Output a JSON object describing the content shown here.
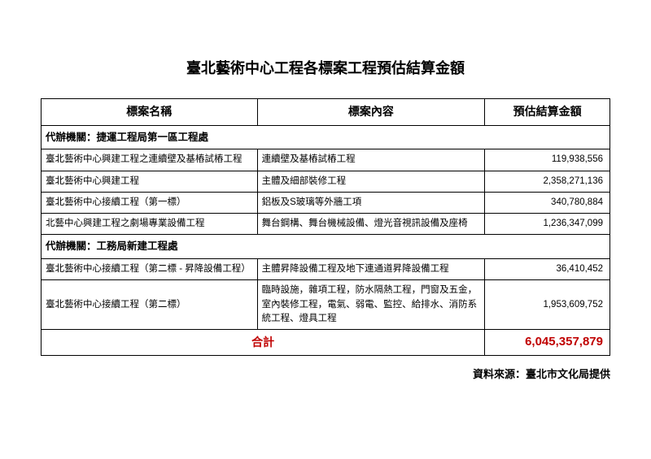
{
  "title": "臺北藝術中心工程各標案工程預估結算金額",
  "headers": {
    "name": "標案名稱",
    "content": "標案內容",
    "amount": "預估結算金額"
  },
  "agency1": "代辦機關：捷運工程局第一區工程處",
  "rows1": [
    {
      "name": "臺北藝術中心興建工程之連續壁及基樁試樁工程",
      "content": "連續壁及基樁試樁工程",
      "amount": "119,938,556"
    },
    {
      "name": "臺北藝術中心興建工程",
      "content": "主體及細部裝修工程",
      "amount": "2,358,271,136"
    },
    {
      "name": "臺北藝術中心接續工程（第一標）",
      "content": "鋁板及S玻璃等外牆工項",
      "amount": "340,780,884"
    },
    {
      "name": "北藝中心興建工程之劇場專業設備工程",
      "content": "舞台鋼構、舞台機械設備、燈光音視訊設備及座椅",
      "amount": "1,236,347,099"
    }
  ],
  "agency2": "代辦機關：工務局新建工程處",
  "rows2": [
    {
      "name": "臺北藝術中心接續工程（第二標 - 昇降設備工程）",
      "content": "主體昇降設備工程及地下連通道昇降設備工程",
      "amount": "36,410,452"
    },
    {
      "name": "臺北藝術中心接續工程（第二標）",
      "content": "臨時設施，雜項工程，防水隔熱工程，門窗及五金，室內裝修工程，電氣、弱電、監控、給排水、消防系統工程、燈具工程",
      "amount": "1,953,609,752"
    }
  ],
  "total": {
    "label": "合計",
    "amount": "6,045,357,879"
  },
  "source": "資料來源：臺北市文化局提供"
}
